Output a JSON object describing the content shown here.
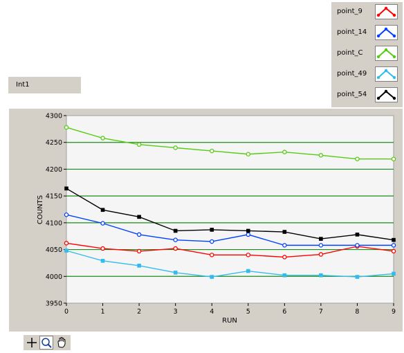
{
  "indicator": {
    "label": "Int1"
  },
  "legend": [
    {
      "name": "point_9",
      "color": "#ff0000"
    },
    {
      "name": "point_14",
      "color": "#0040ff"
    },
    {
      "name": "point_C",
      "color": "#55cc11"
    },
    {
      "name": "point_49",
      "color": "#33bbee"
    },
    {
      "name": "point_54",
      "color": "#000000"
    }
  ],
  "toolbar": {
    "icons": [
      "crosshair-cursor-icon",
      "zoom-icon",
      "pan-hand-icon"
    ]
  },
  "chart_data": {
    "type": "line",
    "title": "",
    "xlabel": "RUN",
    "ylabel": "COUNTS",
    "xlim": [
      0,
      9
    ],
    "ylim": [
      3950,
      4300
    ],
    "x": [
      0,
      1,
      2,
      3,
      4,
      5,
      6,
      7,
      8,
      9
    ],
    "x_ticks": [
      "0",
      "1",
      "2",
      "3",
      "4",
      "5",
      "6",
      "7",
      "8",
      "9"
    ],
    "y_ticks": [
      "3950",
      "4000",
      "4050",
      "4100",
      "4150",
      "4200",
      "4250",
      "4300"
    ],
    "grid": true,
    "grid_color": "#1a8a1a",
    "plot_background": "#f5f5f5",
    "series": [
      {
        "name": "point_9",
        "color": "#ff0000",
        "marker": "circle",
        "values": [
          4062,
          4052,
          4047,
          4052,
          4040,
          4040,
          4036,
          4041,
          4056,
          4047
        ]
      },
      {
        "name": "point_14",
        "color": "#0040ff",
        "marker": "circle",
        "values": [
          4115,
          4099,
          4078,
          4068,
          4065,
          4078,
          4058,
          4058,
          4058,
          4058
        ]
      },
      {
        "name": "point_C",
        "color": "#55cc11",
        "marker": "circle",
        "values": [
          4278,
          4258,
          4246,
          4240,
          4234,
          4228,
          4232,
          4226,
          4219,
          4219
        ]
      },
      {
        "name": "point_49",
        "color": "#33bbee",
        "marker": "square",
        "values": [
          4048,
          4029,
          4020,
          4007,
          3999,
          4010,
          4002,
          4002,
          3999,
          4005
        ]
      },
      {
        "name": "point_54",
        "color": "#000000",
        "marker": "square",
        "values": [
          4164,
          4124,
          4111,
          4085,
          4087,
          4085,
          4083,
          4070,
          4078,
          4068
        ]
      }
    ]
  }
}
